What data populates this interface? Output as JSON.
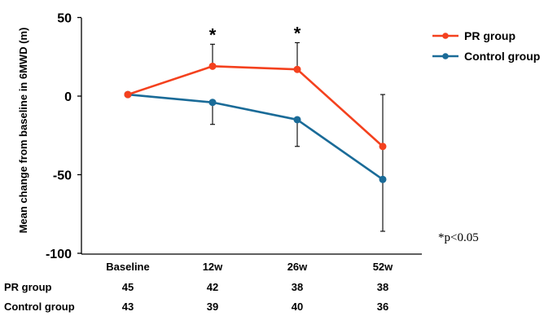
{
  "chart_data": {
    "type": "line",
    "ylabel": "Mean change from baseline in 6MWD (m)",
    "xlabel": "",
    "categories": [
      "Baseline",
      "12w",
      "26w",
      "52w"
    ],
    "ylim": [
      -100,
      50
    ],
    "yticks": [
      50,
      0,
      -50,
      -100
    ],
    "grid": false,
    "legend_position": "top-right",
    "series": [
      {
        "name": "PR group",
        "color": "#f4411e",
        "values": [
          1,
          19,
          17,
          -32
        ],
        "error_upper": [
          null,
          14,
          17,
          null
        ],
        "error_lower": [
          null,
          null,
          null,
          null
        ]
      },
      {
        "name": "Control group",
        "color": "#1a6b98",
        "values": [
          1,
          -4,
          -15,
          -53
        ],
        "error_upper": [
          null,
          null,
          null,
          54
        ],
        "error_lower": [
          null,
          14,
          17,
          33
        ]
      }
    ],
    "significance_markers": [
      {
        "category": "12w",
        "text": "*"
      },
      {
        "category": "26w",
        "text": "*"
      }
    ],
    "annotation": "*p<0.05",
    "table": {
      "rows": [
        {
          "label": "PR group",
          "values": [
            "45",
            "42",
            "38",
            "38"
          ]
        },
        {
          "label": "Control group",
          "values": [
            "43",
            "39",
            "40",
            "36"
          ]
        }
      ]
    }
  }
}
